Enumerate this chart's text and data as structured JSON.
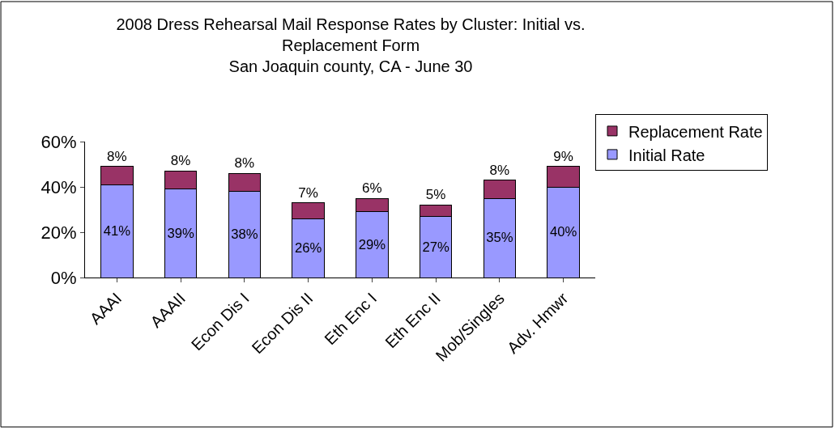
{
  "chart_data": {
    "type": "bar",
    "stacked": true,
    "title": "2008 Dress Rehearsal Mail Response Rates by Cluster: Initial vs. Replacement Form",
    "subtitle": "San Joaquin county, CA - June 30",
    "categories": [
      "AAAI",
      "AAAII",
      "Econ Dis I",
      "Econ Dis II",
      "Eth Enc I",
      "Eth Enc II",
      "Mob/Singles",
      "Adv. Hmwr"
    ],
    "series": [
      {
        "name": "Initial Rate",
        "color": "#9999ff",
        "values": [
          41,
          39,
          38,
          26,
          29,
          27,
          35,
          40
        ],
        "value_labels": [
          "41%",
          "39%",
          "38%",
          "26%",
          "29%",
          "27%",
          "35%",
          "40%"
        ]
      },
      {
        "name": "Replacement Rate",
        "color": "#993366",
        "values": [
          8,
          8,
          8,
          7,
          6,
          5,
          8,
          9
        ],
        "value_labels": [
          "8%",
          "8%",
          "8%",
          "7%",
          "6%",
          "5%",
          "8%",
          "9%"
        ]
      }
    ],
    "ylim": [
      0,
      60
    ],
    "yticks": [
      {
        "value": 0,
        "label": "0%"
      },
      {
        "value": 20,
        "label": "20%"
      },
      {
        "value": 40,
        "label": "40%"
      },
      {
        "value": 60,
        "label": "60%"
      }
    ],
    "legend": "top right"
  }
}
